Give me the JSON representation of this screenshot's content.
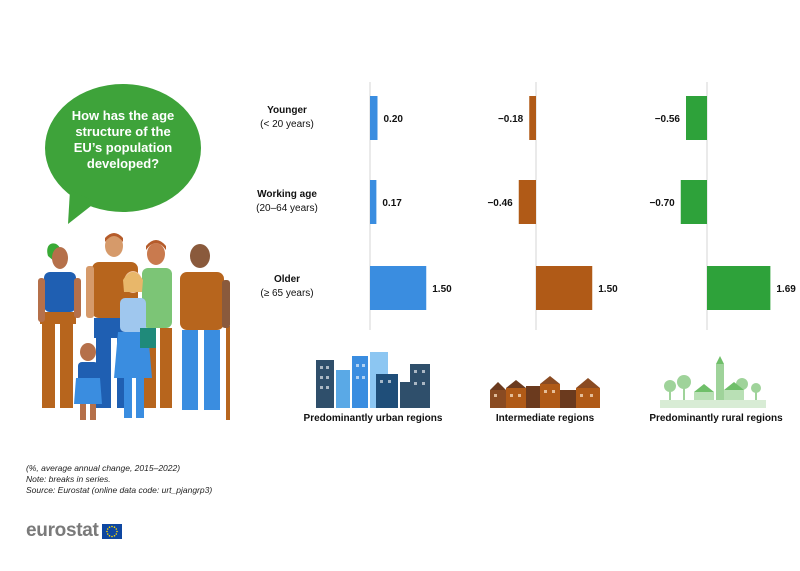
{
  "question": "How has the age\nstructure of the\nEU’s population\ndeveloped?",
  "chart_data": {
    "type": "bar",
    "orientation": "horizontal",
    "categories": [
      {
        "label": "Younger",
        "sublabel": "(< 20 years)"
      },
      {
        "label": "Working age",
        "sublabel": "(20–64 years)"
      },
      {
        "label": "Older",
        "sublabel": "(≥ 65 years)"
      }
    ],
    "series": [
      {
        "name": "Predominantly urban regions",
        "color": "#3a8de0",
        "values": [
          0.2,
          0.17,
          1.5
        ],
        "value_labels": [
          "0.20",
          "0.17",
          "1.50"
        ]
      },
      {
        "name": "Intermediate regions",
        "color": "#b05a17",
        "values": [
          -0.18,
          -0.46,
          1.5
        ],
        "value_labels": [
          "−0.18",
          "−0.46",
          "1.50"
        ]
      },
      {
        "name": "Predominantly rural regions",
        "color": "#2ea23a",
        "values": [
          -0.56,
          -0.7,
          1.69
        ],
        "value_labels": [
          "−0.56",
          "−0.70",
          "1.69"
        ]
      }
    ]
  },
  "notes": {
    "unit": "(%, average annual change, 2015–2022)",
    "note": "Note: breaks in series.",
    "source": "Source: Eurostat (online data code: urt_pjangrp3)"
  },
  "logo": {
    "text": "eurostat"
  },
  "colors": {
    "bubble": "#3ea33a",
    "logo_text": "#7a7a7a",
    "flag_blue": "#0e47a1",
    "flag_star": "#ffdd00"
  }
}
